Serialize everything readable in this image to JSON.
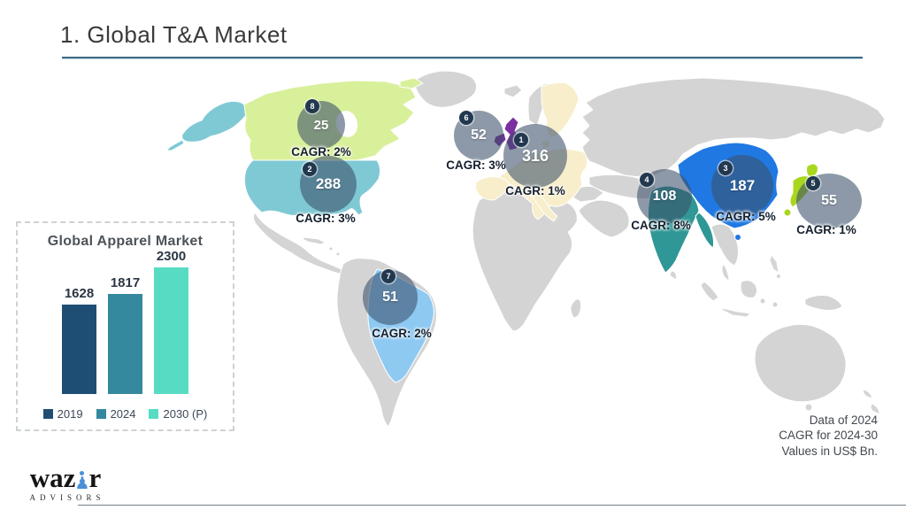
{
  "page": {
    "title": "1. Global T&A Market"
  },
  "chart_data": {
    "type": "bar",
    "title": "Global Apparel Market",
    "categories": [
      "2019",
      "2024",
      "2030 (P)"
    ],
    "values": [
      1628,
      1817,
      2300
    ],
    "colors": [
      "#1f4e74",
      "#35899e",
      "#57dcc3"
    ],
    "xlabel": "",
    "ylabel": "",
    "ylim": [
      0,
      2400
    ],
    "grid": false,
    "legend_position": "bottom",
    "value_labels": true
  },
  "map": {
    "regions": [
      {
        "id": "eu",
        "rank": "1",
        "name": "European Union",
        "value": "316",
        "cagr_label": "CAGR: 1%",
        "color": "#f8eecb"
      },
      {
        "id": "usa",
        "rank": "2",
        "name": "USA",
        "value": "288",
        "cagr_label": "CAGR: 3%",
        "color": "#7fc9d5"
      },
      {
        "id": "china",
        "rank": "3",
        "name": "China",
        "value": "187",
        "cagr_label": "CAGR: 5%",
        "color": "#2079e2"
      },
      {
        "id": "india",
        "rank": "4",
        "name": "India",
        "value": "108",
        "cagr_label": "CAGR: 8%",
        "color": "#2f9795"
      },
      {
        "id": "japan",
        "rank": "5",
        "name": "Japan",
        "value": "55",
        "cagr_label": "CAGR: 1%",
        "color": "#a8d71e"
      },
      {
        "id": "uk",
        "rank": "6",
        "name": "UK",
        "value": "52",
        "cagr_label": "CAGR: 3%",
        "color": "#7c2fa0"
      },
      {
        "id": "brazil",
        "rank": "7",
        "name": "Brazil",
        "value": "51",
        "cagr_label": "CAGR: 2%",
        "color": "#8ec9f2"
      },
      {
        "id": "canada",
        "rank": "8",
        "name": "Canada",
        "value": "25",
        "cagr_label": "CAGR: 2%",
        "color": "#d9f09b"
      }
    ]
  },
  "footnote": {
    "lines": [
      "Data of 2024",
      "CAGR for 2024-30",
      "Values in US$ Bn."
    ]
  },
  "logo": {
    "word_left": "waz",
    "word_right": "r",
    "subtitle": "ADVISORS"
  }
}
